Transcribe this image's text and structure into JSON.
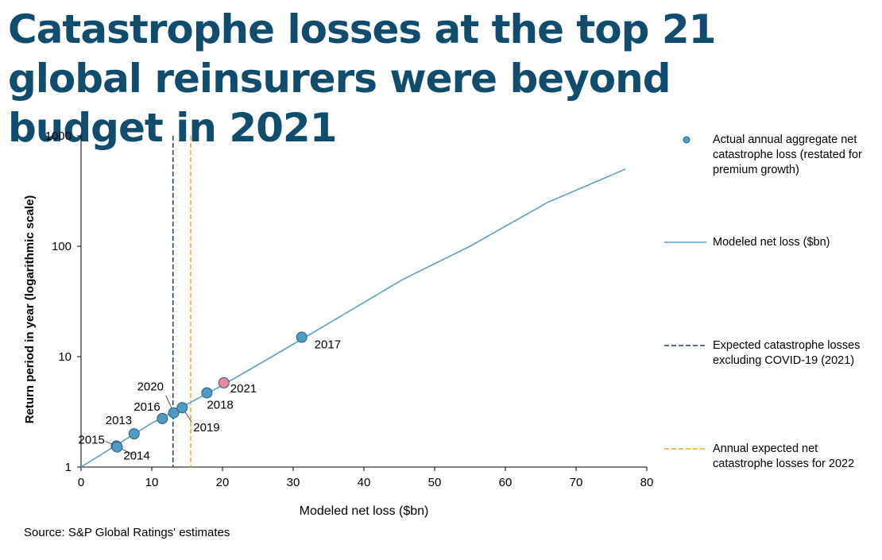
{
  "title": "Catastrophe losses at the top 21 global reinsurers were beyond budget in 2021",
  "source": "Source: S&P Global Ratings' estimates",
  "colors": {
    "title": "#0f4c6d",
    "line": "#5aa0c8",
    "point_fill": "#4e9cc4",
    "point_2021": "#e48aa3",
    "vline_2021": "#1f3b73",
    "vline_2022": "#f5a623"
  },
  "chart_data": {
    "type": "scatter",
    "xlabel": "Modeled net loss ($bn)",
    "ylabel": "Return period in year (logarithmic scale)",
    "xlim": [
      0,
      80
    ],
    "ylim": [
      1,
      1000
    ],
    "yscale": "log",
    "x_ticks": [
      "0",
      "10",
      "20",
      "30",
      "40",
      "50",
      "60",
      "70",
      "80"
    ],
    "y_ticks": [
      "1",
      "10",
      "100",
      "1000"
    ],
    "grid": false,
    "legend_position": "right",
    "series": [
      {
        "name": "Actual annual aggregate net catastrophe loss (restated for premium growth)",
        "kind": "points",
        "points": [
          {
            "label": "2015",
            "x": 5.0,
            "y": 1.55
          },
          {
            "label": "2014",
            "x": 5.1,
            "y": 1.52
          },
          {
            "label": "2013",
            "x": 7.5,
            "y": 2.0
          },
          {
            "label": "2016",
            "x": 11.5,
            "y": 2.75
          },
          {
            "label": "2020",
            "x": 13.1,
            "y": 3.1
          },
          {
            "label": "2019",
            "x": 14.3,
            "y": 3.45
          },
          {
            "label": "2018",
            "x": 17.8,
            "y": 4.7
          },
          {
            "label": "2021",
            "x": 20.2,
            "y": 5.8
          },
          {
            "label": "2017",
            "x": 31.2,
            "y": 15.0
          }
        ]
      },
      {
        "name": "Modeled net loss ($bn)",
        "kind": "line",
        "x": [
          0,
          10,
          20,
          27,
          35,
          45.5,
          55,
          66,
          77
        ],
        "y": [
          1,
          2.5,
          5.5,
          10,
          20,
          50,
          100,
          250,
          500
        ]
      },
      {
        "name": "Expected catastrophe losses excluding COVID-19 (2021)",
        "kind": "vline",
        "x": 13.0
      },
      {
        "name": "Annual expected net catastrophe losses for 2022",
        "kind": "vline",
        "x": 15.5
      }
    ]
  },
  "legend": [
    {
      "text": "Actual annual aggregate net catastrophe loss (restated for premium growth)"
    },
    {
      "text": "Modeled net loss ($bn)"
    },
    {
      "text": "Expected catastrophe losses excluding COVID-19 (2021)"
    },
    {
      "text": "Annual expected net catastrophe losses for 2022"
    }
  ]
}
